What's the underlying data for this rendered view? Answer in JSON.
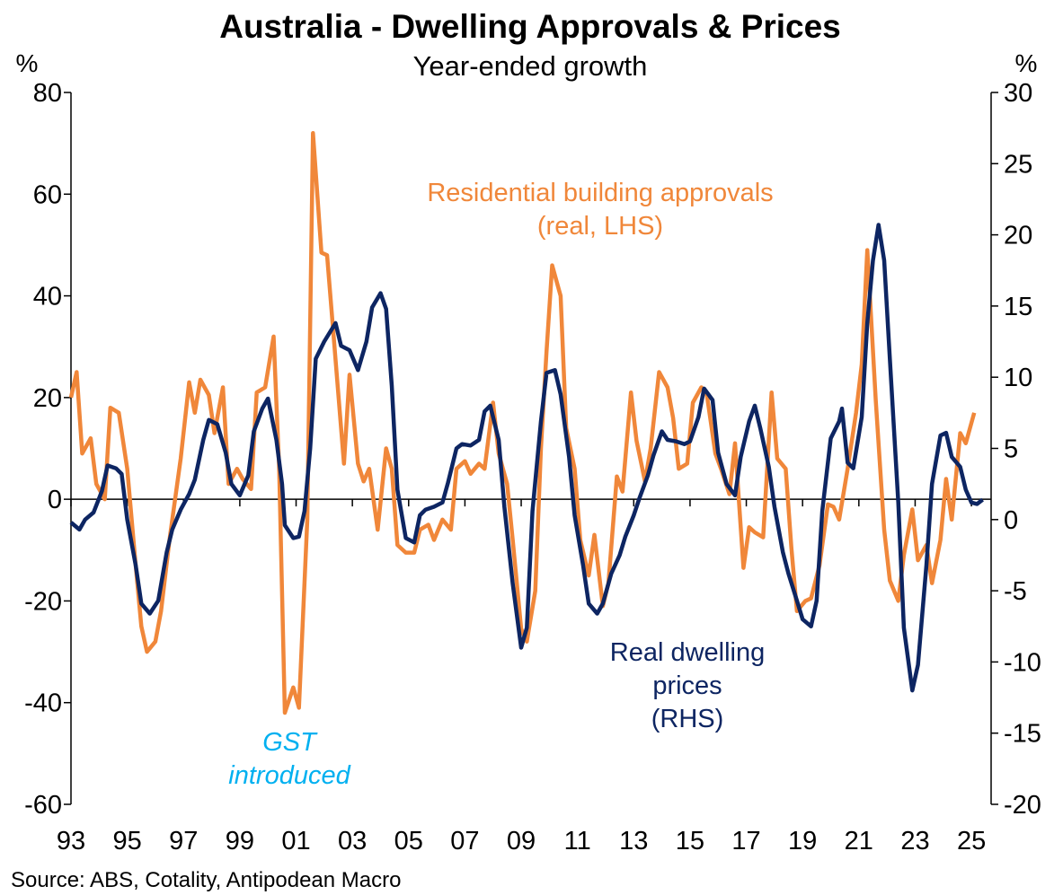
{
  "chart_data": {
    "type": "line",
    "title": "Australia - Dwelling Approvals & Prices",
    "subtitle": "Year-ended growth",
    "y_unit": "%",
    "y2_unit": "%",
    "source": "Source: ABS, Cotality, Antipodean Macro",
    "xlim": [
      1993,
      2025.7
    ],
    "xticks": [
      {
        "value": 1993,
        "label": "93"
      },
      {
        "value": 1995,
        "label": "95"
      },
      {
        "value": 1997,
        "label": "97"
      },
      {
        "value": 1999,
        "label": "99"
      },
      {
        "value": 2001,
        "label": "01"
      },
      {
        "value": 2003,
        "label": "03"
      },
      {
        "value": 2005,
        "label": "05"
      },
      {
        "value": 2007,
        "label": "07"
      },
      {
        "value": 2009,
        "label": "09"
      },
      {
        "value": 2011,
        "label": "11"
      },
      {
        "value": 2013,
        "label": "13"
      },
      {
        "value": 2015,
        "label": "15"
      },
      {
        "value": 2017,
        "label": "17"
      },
      {
        "value": 2019,
        "label": "19"
      },
      {
        "value": 2021,
        "label": "21"
      },
      {
        "value": 2023,
        "label": "23"
      },
      {
        "value": 2025,
        "label": "25"
      }
    ],
    "ylim": [
      -60,
      80
    ],
    "yticks": [
      -60,
      -40,
      -20,
      0,
      20,
      40,
      60,
      80
    ],
    "y2lim": [
      -20,
      30
    ],
    "y2ticks": [
      -20,
      -15,
      -10,
      -5,
      0,
      5,
      10,
      15,
      20,
      25,
      30
    ],
    "series": [
      {
        "name": [
          "Residential building approvals",
          "(real, LHS)"
        ],
        "color": "#f0873a",
        "axis": "y",
        "x": [
          1993.0,
          1993.2,
          1993.4,
          1993.7,
          1993.9,
          1994.2,
          1994.4,
          1994.7,
          1995.0,
          1995.3,
          1995.5,
          1995.7,
          1996.0,
          1996.2,
          1996.5,
          1996.9,
          1997.2,
          1997.4,
          1997.6,
          1997.9,
          1998.1,
          1998.4,
          1998.6,
          1998.9,
          1999.1,
          1999.4,
          1999.6,
          1999.9,
          2000.2,
          2000.4,
          2000.6,
          2000.9,
          2001.1,
          2001.4,
          2001.6,
          2001.9,
          2002.1,
          2002.4,
          2002.7,
          2002.9,
          2003.2,
          2003.4,
          2003.6,
          2003.9,
          2004.2,
          2004.4,
          2004.6,
          2004.9,
          2005.2,
          2005.4,
          2005.7,
          2005.9,
          2006.2,
          2006.5,
          2006.7,
          2007.0,
          2007.2,
          2007.5,
          2007.7,
          2008.0,
          2008.2,
          2008.5,
          2008.7,
          2009.0,
          2009.2,
          2009.5,
          2009.7,
          2009.9,
          2010.1,
          2010.4,
          2010.6,
          2010.9,
          2011.1,
          2011.4,
          2011.6,
          2011.9,
          2012.1,
          2012.4,
          2012.6,
          2012.9,
          2013.1,
          2013.4,
          2013.6,
          2013.9,
          2014.2,
          2014.4,
          2014.6,
          2014.9,
          2015.1,
          2015.4,
          2015.6,
          2015.9,
          2016.1,
          2016.4,
          2016.6,
          2016.9,
          2017.1,
          2017.3,
          2017.6,
          2017.9,
          2018.1,
          2018.4,
          2018.6,
          2018.8,
          2019.1,
          2019.3,
          2019.6,
          2019.9,
          2020.1,
          2020.3,
          2020.6,
          2020.9,
          2021.1,
          2021.3,
          2021.6,
          2021.9,
          2022.1,
          2022.4,
          2022.6,
          2022.9,
          2023.1,
          2023.4,
          2023.6,
          2023.9,
          2024.1,
          2024.3,
          2024.6,
          2024.8,
          2025.1
        ],
        "values": [
          20,
          25,
          9,
          12,
          3,
          0,
          18,
          17,
          6,
          -13,
          -25,
          -30,
          -28,
          -22,
          -8,
          8,
          23,
          17,
          23.5,
          20.5,
          13,
          22,
          3,
          6,
          4,
          2,
          21,
          22,
          32,
          6,
          -42,
          -37,
          -41,
          -4,
          72,
          48.5,
          48,
          27.5,
          7,
          24.5,
          7,
          3.5,
          6,
          -6,
          10,
          6,
          -9,
          -10.5,
          -10.5,
          -6,
          -5,
          -8,
          -4,
          -6,
          6,
          7.5,
          5,
          7,
          6,
          19,
          9,
          3,
          -8,
          -25.5,
          -28,
          -18,
          10,
          29,
          46,
          40,
          14,
          6,
          -8,
          -15,
          -7,
          -21,
          -16.5,
          4.5,
          1.5,
          21,
          11.5,
          3.5,
          10,
          25,
          22,
          16,
          6,
          7,
          19,
          22,
          20.5,
          9,
          6,
          1,
          11,
          -13.5,
          -5.5,
          -6.5,
          -7.5,
          21,
          8,
          6,
          -9.5,
          -22,
          -20,
          -19.5,
          -13,
          -1,
          -1.5,
          -4,
          6,
          17,
          26.5,
          49,
          19.5,
          -6,
          -16,
          -20,
          -11,
          -2,
          -12,
          -9,
          -16.5,
          -8,
          4,
          -4,
          13,
          11,
          17
        ]
      },
      {
        "name": [
          "Real dwelling",
          "prices",
          "(RHS)"
        ],
        "color": "#0d2562",
        "axis": "y2",
        "x": [
          1993.0,
          1993.3,
          1993.5,
          1993.8,
          1994.1,
          1994.3,
          1994.6,
          1994.8,
          1995.0,
          1995.3,
          1995.5,
          1995.8,
          1996.1,
          1996.4,
          1996.6,
          1996.9,
          1997.2,
          1997.4,
          1997.7,
          1997.9,
          1998.2,
          1998.5,
          1998.7,
          1999.0,
          1999.3,
          1999.5,
          1999.8,
          2000.0,
          2000.3,
          2000.5,
          2000.6,
          2000.9,
          2001.1,
          2001.3,
          2001.5,
          2001.7,
          2002.0,
          2002.4,
          2002.6,
          2002.9,
          2003.2,
          2003.5,
          2003.7,
          2004.0,
          2004.2,
          2004.4,
          2004.6,
          2004.9,
          2005.2,
          2005.4,
          2005.6,
          2005.9,
          2006.2,
          2006.4,
          2006.7,
          2006.9,
          2007.2,
          2007.5,
          2007.7,
          2007.9,
          2008.2,
          2008.4,
          2008.7,
          2009.0,
          2009.2,
          2009.4,
          2009.7,
          2009.9,
          2010.2,
          2010.4,
          2010.7,
          2010.9,
          2011.2,
          2011.4,
          2011.7,
          2011.9,
          2012.2,
          2012.5,
          2012.7,
          2013.0,
          2013.2,
          2013.5,
          2013.7,
          2014.0,
          2014.2,
          2014.5,
          2014.8,
          2015.0,
          2015.3,
          2015.5,
          2015.8,
          2016.0,
          2016.3,
          2016.6,
          2016.8,
          2017.1,
          2017.3,
          2017.5,
          2017.8,
          2018.0,
          2018.3,
          2018.5,
          2018.8,
          2019.0,
          2019.3,
          2019.5,
          2019.7,
          2020.0,
          2020.3,
          2020.4,
          2020.6,
          2020.8,
          2021.1,
          2021.3,
          2021.5,
          2021.7,
          2021.9,
          2022.1,
          2022.4,
          2022.6,
          2022.9,
          2023.1,
          2023.4,
          2023.6,
          2023.9,
          2024.1,
          2024.3,
          2024.6,
          2024.8,
          2025.0,
          2025.2,
          2025.4
        ],
        "values": [
          -0.2,
          -0.7,
          0,
          0.5,
          2,
          3.8,
          3.6,
          3.2,
          0,
          -3.2,
          -5.9,
          -6.6,
          -5.7,
          -2.3,
          -0.7,
          0.7,
          1.8,
          2.8,
          5.6,
          7,
          6.7,
          4.7,
          2.5,
          1.7,
          3.1,
          6.2,
          7.8,
          8.5,
          5.6,
          2.5,
          -0.4,
          -1.3,
          -1.2,
          0.6,
          5,
          11.3,
          12.5,
          13.8,
          12.2,
          11.9,
          10.5,
          12.5,
          14.9,
          15.9,
          14.8,
          9.4,
          2.1,
          -1.3,
          -1.6,
          0.3,
          0.7,
          0.9,
          1.2,
          2.6,
          5,
          5.3,
          5.2,
          5.6,
          7.6,
          8,
          5.6,
          0.9,
          -4.5,
          -9,
          -7.6,
          0.6,
          6.9,
          10.3,
          10.5,
          8.8,
          4.4,
          0.3,
          -3.2,
          -5.9,
          -6.6,
          -5.9,
          -3.8,
          -2.5,
          -1.2,
          0.3,
          1.5,
          3.1,
          4.5,
          6.2,
          5.6,
          5.5,
          5.3,
          5.5,
          7.2,
          9.2,
          8.4,
          4.7,
          2.5,
          1.7,
          4.4,
          6.9,
          8,
          6.4,
          3.7,
          0.9,
          -2.3,
          -3.8,
          -5.7,
          -7,
          -7.5,
          -5.7,
          0.6,
          5.7,
          6.9,
          7.8,
          4,
          3.6,
          7.2,
          13.8,
          18.2,
          20.7,
          18.2,
          11.3,
          1.2,
          -7.6,
          -12,
          -10.2,
          -3.2,
          2.5,
          5.9,
          6.1,
          4.4,
          3.7,
          2.1,
          1.2,
          1.1,
          1.4
        ]
      }
    ],
    "annotations": [
      {
        "text": [
          "GST",
          "introduced"
        ],
        "color": "#00b0f0"
      }
    ]
  }
}
